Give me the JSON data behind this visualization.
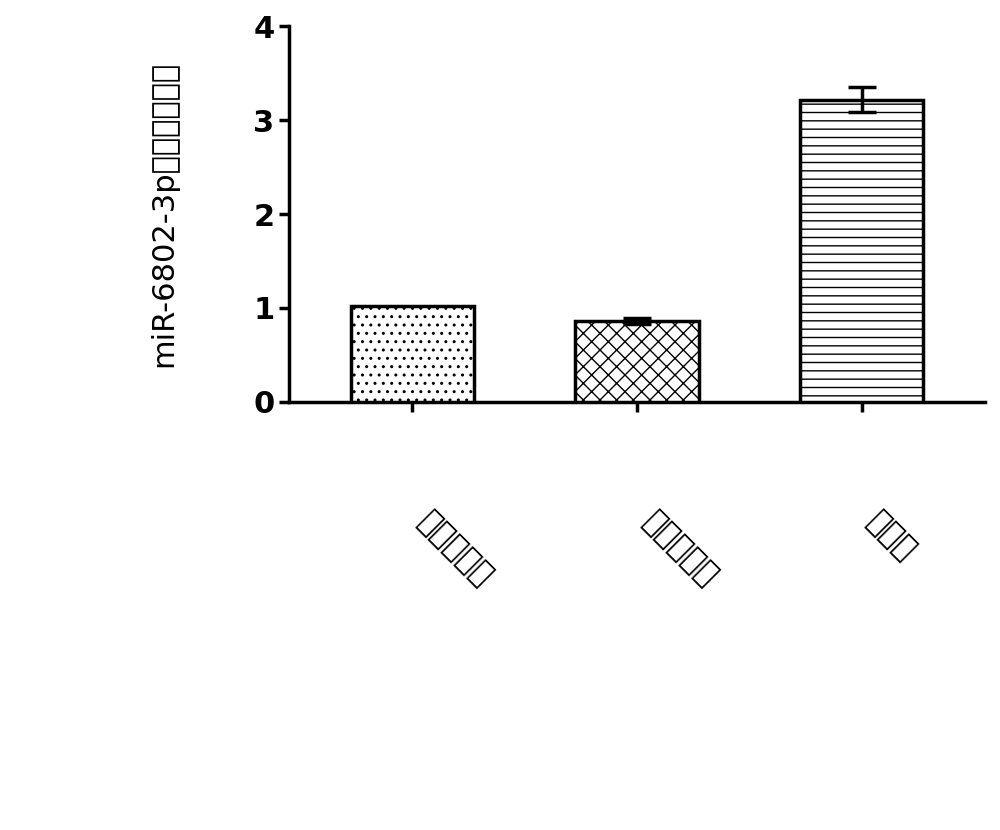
{
  "categories": [
    "空白对照组",
    "阴性对照组",
    "实验组"
  ],
  "values": [
    1.02,
    0.86,
    3.22
  ],
  "errors": [
    0.0,
    0.03,
    0.13
  ],
  "ylabel": "miR-6802-3p的相对表达量",
  "ylim": [
    0,
    4.0
  ],
  "yticks": [
    0,
    1,
    2,
    3,
    4
  ],
  "bar_width": 0.55,
  "bar_edge_color": "#000000",
  "bar_linewidth": 2.5,
  "background_color": "#ffffff",
  "hatch_patterns": [
    "..",
    "xx",
    "--"
  ],
  "bar_face_colors": [
    "#ffffff",
    "#ffffff",
    "#ffffff"
  ],
  "error_capsize": 10,
  "error_linewidth": 2.5,
  "error_color": "#000000",
  "tick_fontsize": 22,
  "ylabel_fontsize": 22,
  "xtick_rotation": -45,
  "spine_linewidth": 2.5
}
